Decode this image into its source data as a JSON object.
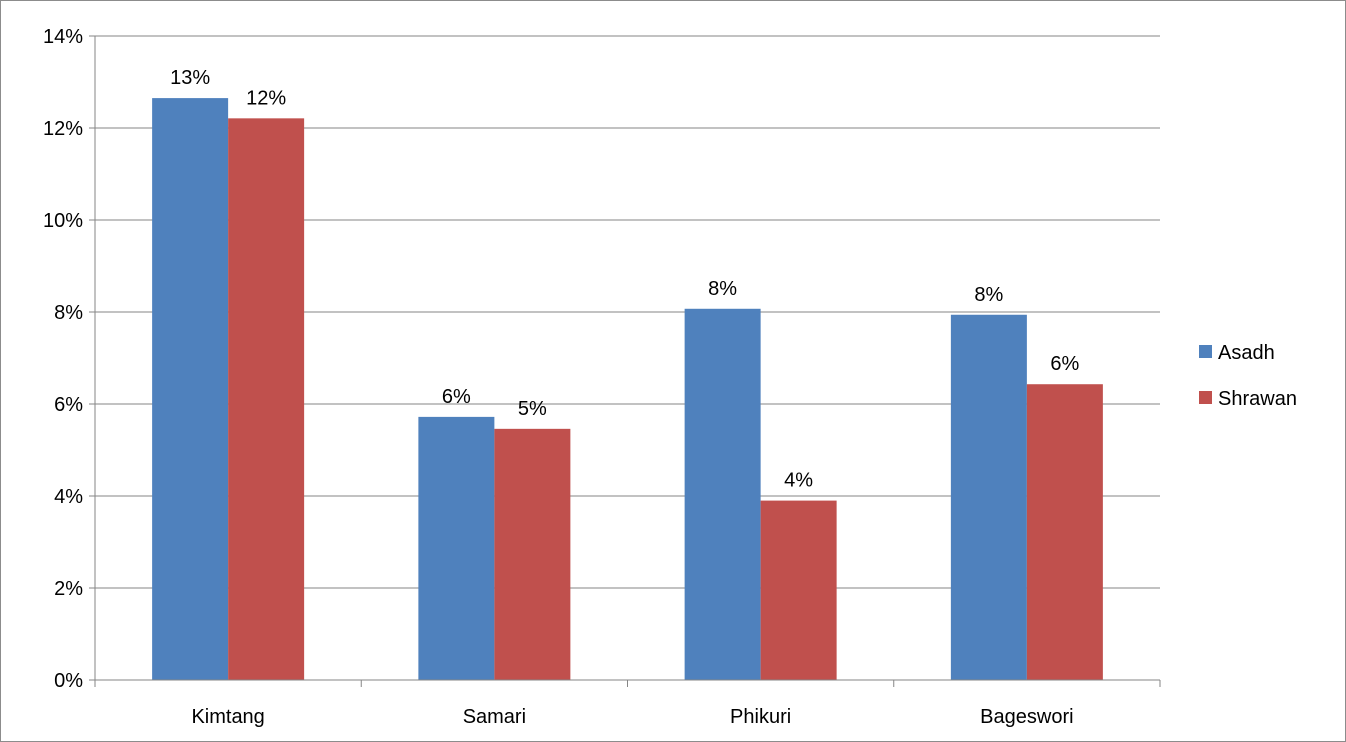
{
  "chart_data": {
    "type": "bar",
    "title": "",
    "xlabel": "",
    "ylabel": "",
    "categories": [
      "Kimtang",
      "Samari",
      "Phikuri",
      "Bageswori"
    ],
    "series": [
      {
        "name": "Asadh",
        "color": "#4f81bd",
        "values": [
          12.65,
          5.72,
          8.07,
          7.94
        ],
        "labels": [
          "13%",
          "6%",
          "8%",
          "8%"
        ]
      },
      {
        "name": "Shrawan",
        "color": "#c0504d",
        "values": [
          12.21,
          5.46,
          3.9,
          6.43
        ],
        "labels": [
          "12%",
          "5%",
          "4%",
          "6%"
        ]
      }
    ],
    "ylim": [
      0,
      14
    ],
    "yticks": [
      "0%",
      "2%",
      "4%",
      "6%",
      "8%",
      "10%",
      "12%",
      "14%"
    ],
    "grid": true,
    "legend_position": "right"
  }
}
